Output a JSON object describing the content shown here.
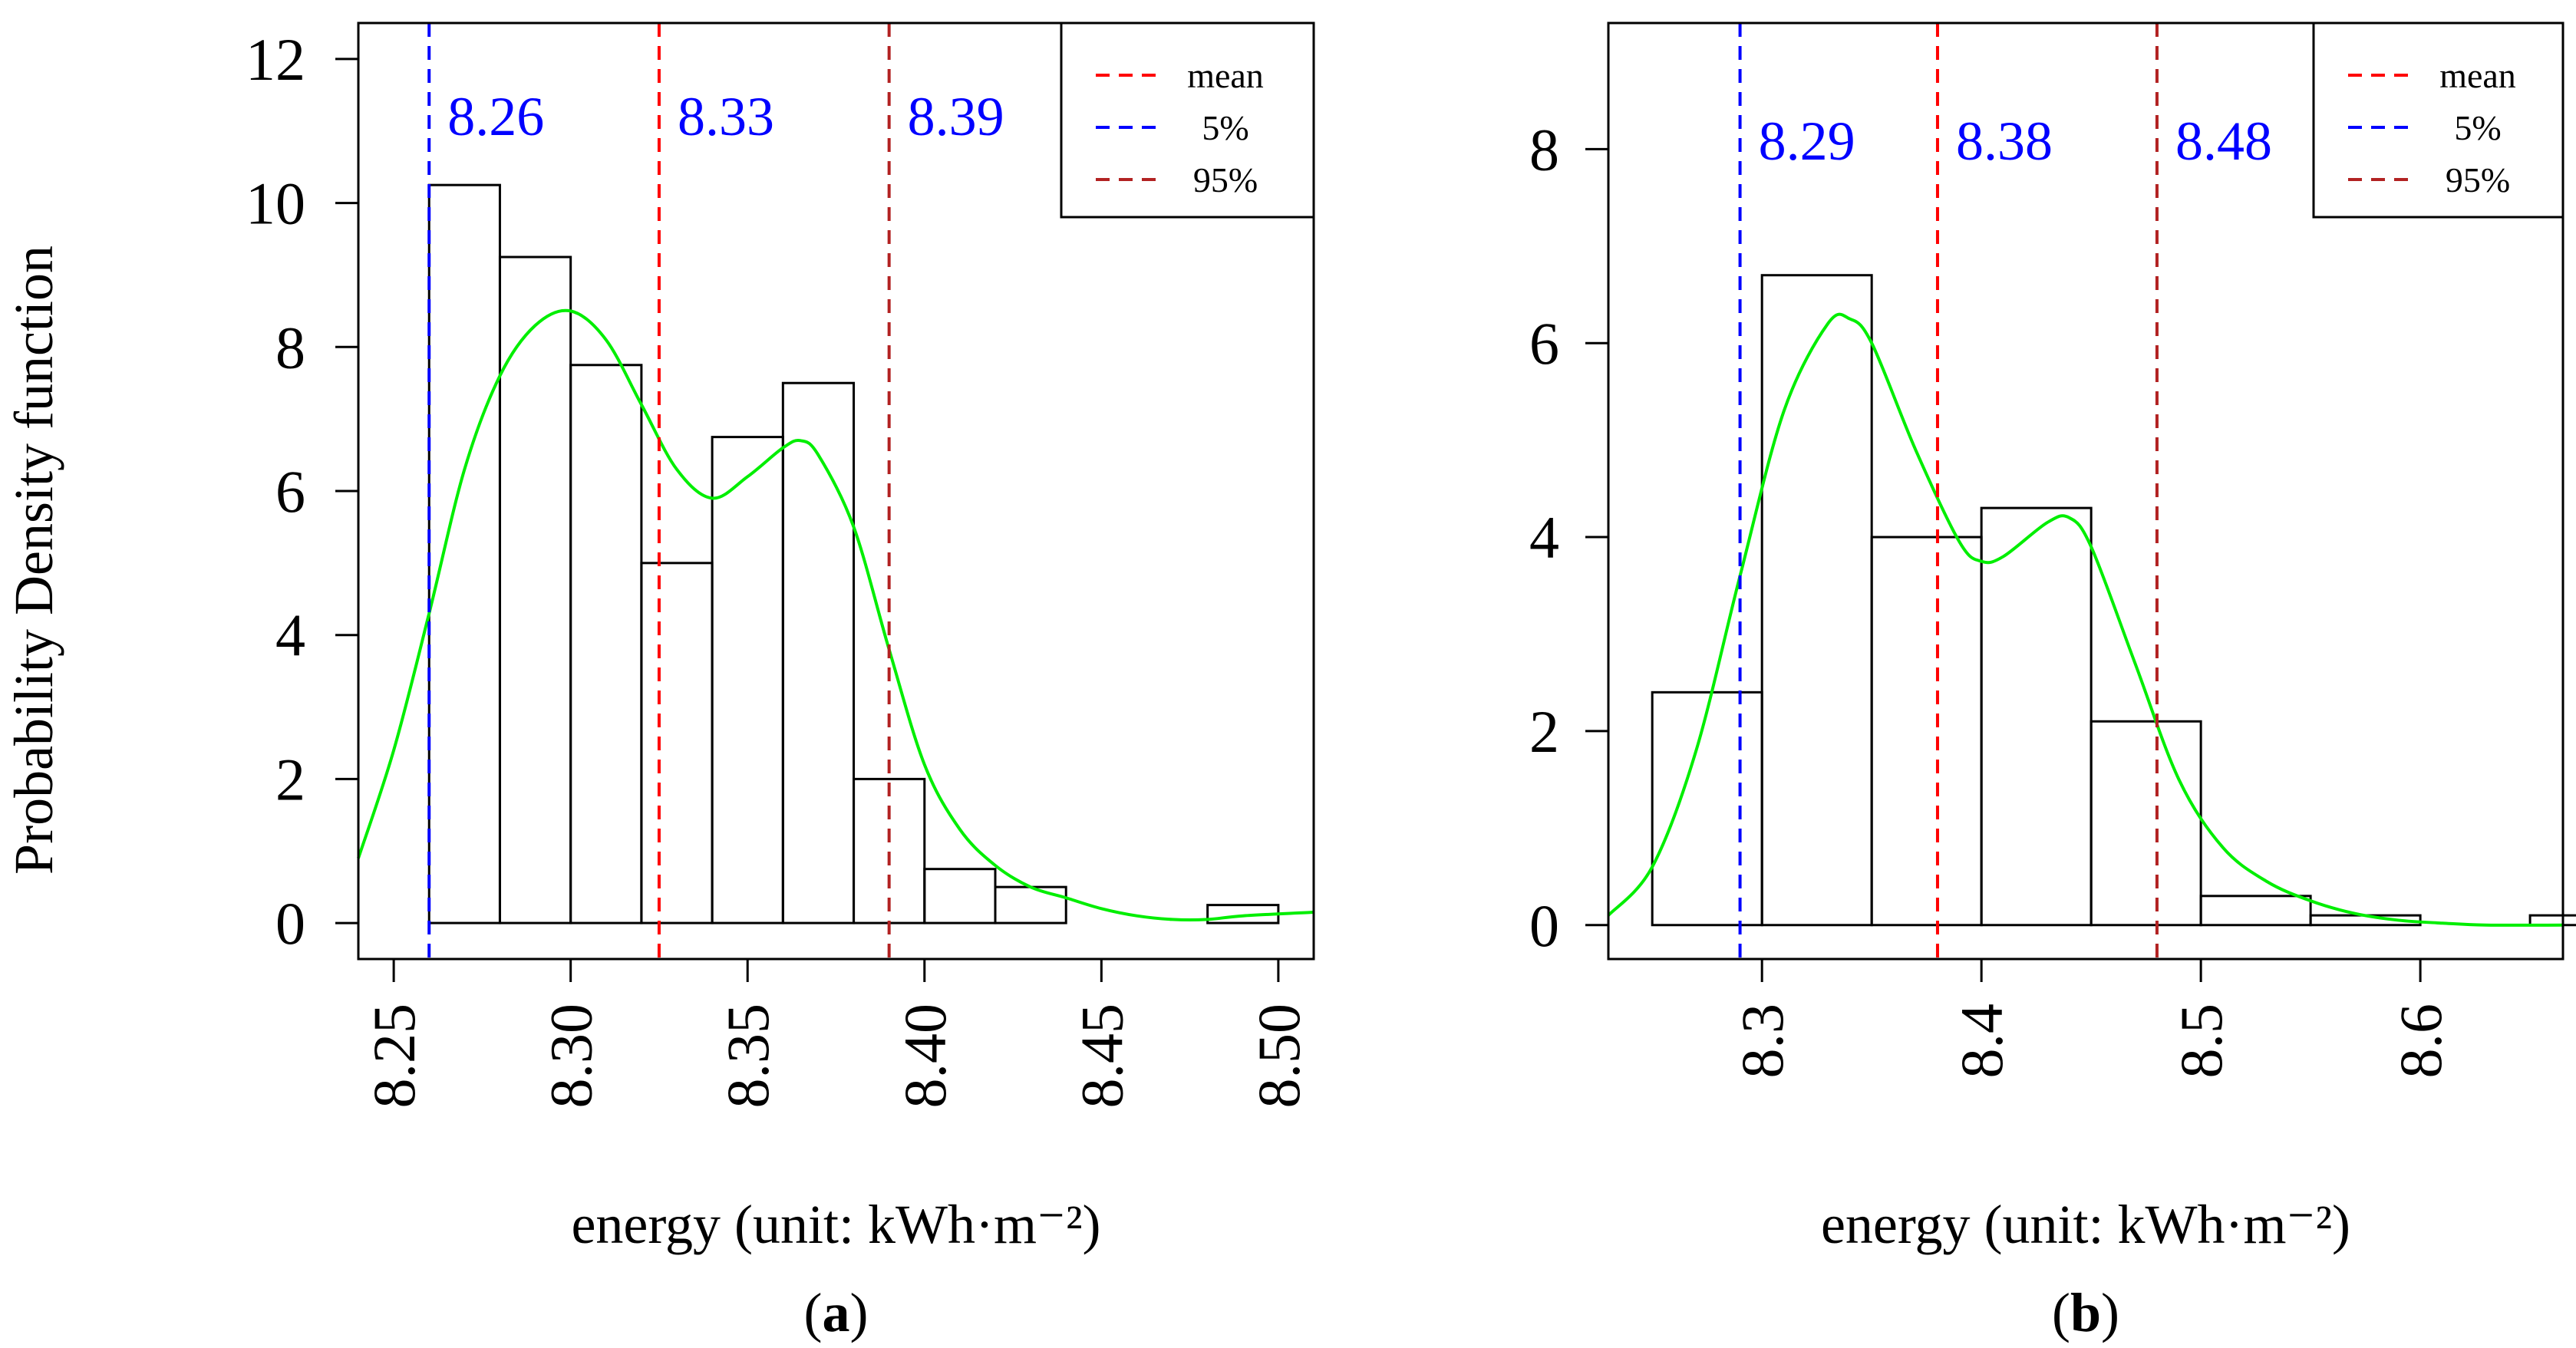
{
  "figure": {
    "ylabel": "Probability Density function"
  },
  "chart_data": [
    {
      "type": "histogram",
      "panel_label": "a",
      "xlabel": "energy (unit: kWh·m⁻²)",
      "ylabel": "Probability Density function",
      "xlim": [
        8.24,
        8.51
      ],
      "ylim": [
        -0.5,
        12.5
      ],
      "xticks": [
        8.25,
        8.3,
        8.35,
        8.4,
        8.45,
        8.5
      ],
      "xtick_labels": [
        "8.25",
        "8.30",
        "8.35",
        "8.40",
        "8.45",
        "8.50"
      ],
      "yticks": [
        0,
        2,
        4,
        6,
        8,
        10,
        12
      ],
      "ytick_labels": [
        "0",
        "2",
        "4",
        "6",
        "8",
        "10",
        "12"
      ],
      "bins": [
        {
          "x0": 8.26,
          "x1": 8.28,
          "density": 10.25
        },
        {
          "x0": 8.28,
          "x1": 8.3,
          "density": 9.25
        },
        {
          "x0": 8.3,
          "x1": 8.32,
          "density": 7.75
        },
        {
          "x0": 8.32,
          "x1": 8.34,
          "density": 5.0
        },
        {
          "x0": 8.34,
          "x1": 8.36,
          "density": 6.75
        },
        {
          "x0": 8.36,
          "x1": 8.38,
          "density": 7.5
        },
        {
          "x0": 8.38,
          "x1": 8.4,
          "density": 2.0
        },
        {
          "x0": 8.4,
          "x1": 8.42,
          "density": 0.75
        },
        {
          "x0": 8.42,
          "x1": 8.44,
          "density": 0.5
        },
        {
          "x0": 8.44,
          "x1": 8.46,
          "density": 0.0
        },
        {
          "x0": 8.46,
          "x1": 8.48,
          "density": 0.0
        },
        {
          "x0": 8.48,
          "x1": 8.5,
          "density": 0.25
        }
      ],
      "density_curve": {
        "color": "#00ee00",
        "x": [
          8.24,
          8.25,
          8.26,
          8.27,
          8.28,
          8.29,
          8.3,
          8.31,
          8.32,
          8.33,
          8.34,
          8.35,
          8.36,
          8.365,
          8.37,
          8.38,
          8.39,
          8.4,
          8.41,
          8.42,
          8.43,
          8.44,
          8.45,
          8.46,
          8.47,
          8.48,
          8.49,
          8.51
        ],
        "y": [
          0.9,
          2.4,
          4.3,
          6.3,
          7.6,
          8.3,
          8.5,
          8.1,
          7.2,
          6.3,
          5.9,
          6.2,
          6.6,
          6.7,
          6.5,
          5.5,
          3.8,
          2.2,
          1.3,
          0.8,
          0.5,
          0.35,
          0.2,
          0.1,
          0.05,
          0.05,
          0.1,
          0.15
        ]
      },
      "vlines": [
        {
          "name": "5%",
          "x": 8.26,
          "color": "#0000ff",
          "label": "8.26"
        },
        {
          "name": "mean",
          "x": 8.325,
          "color": "#ff0000",
          "label": "8.33"
        },
        {
          "name": "95%",
          "x": 8.39,
          "color": "#b22222",
          "label": "8.39"
        }
      ],
      "value_label_color": "#0000ff",
      "legend": {
        "placement": "top-right",
        "entries": [
          {
            "label": "mean",
            "color": "#ff0000"
          },
          {
            "label": "5%",
            "color": "#0000ff"
          },
          {
            "label": "95%",
            "color": "#b22222"
          }
        ]
      }
    },
    {
      "type": "histogram",
      "panel_label": "b",
      "xlabel": "energy (unit: kWh·m⁻²)",
      "ylabel": "",
      "xlim": [
        8.23,
        8.665
      ],
      "ylim": [
        -0.35,
        9.3
      ],
      "xticks": [
        8.3,
        8.4,
        8.5,
        8.6
      ],
      "xtick_labels": [
        "8.3",
        "8.4",
        "8.5",
        "8.6"
      ],
      "yticks": [
        0,
        2,
        4,
        6,
        8
      ],
      "ytick_labels": [
        "0",
        "2",
        "4",
        "6",
        "8"
      ],
      "bins": [
        {
          "x0": 8.25,
          "x1": 8.3,
          "density": 2.4
        },
        {
          "x0": 8.3,
          "x1": 8.35,
          "density": 6.7
        },
        {
          "x0": 8.35,
          "x1": 8.4,
          "density": 4.0
        },
        {
          "x0": 8.4,
          "x1": 8.45,
          "density": 4.3
        },
        {
          "x0": 8.45,
          "x1": 8.5,
          "density": 2.1
        },
        {
          "x0": 8.5,
          "x1": 8.55,
          "density": 0.3
        },
        {
          "x0": 8.55,
          "x1": 8.6,
          "density": 0.1
        },
        {
          "x0": 8.6,
          "x1": 8.65,
          "density": 0.0
        },
        {
          "x0": 8.65,
          "x1": 8.7,
          "density": 0.1
        }
      ],
      "density_curve": {
        "color": "#00ee00",
        "x": [
          8.23,
          8.25,
          8.27,
          8.29,
          8.31,
          8.33,
          8.34,
          8.35,
          8.37,
          8.39,
          8.4,
          8.41,
          8.43,
          8.44,
          8.45,
          8.47,
          8.49,
          8.51,
          8.53,
          8.55,
          8.57,
          8.59,
          8.61,
          8.63,
          8.665
        ],
        "y": [
          0.1,
          0.6,
          1.8,
          3.6,
          5.3,
          6.2,
          6.25,
          6.0,
          4.9,
          3.95,
          3.75,
          3.8,
          4.15,
          4.2,
          3.9,
          2.7,
          1.5,
          0.8,
          0.45,
          0.25,
          0.12,
          0.05,
          0.02,
          0.0,
          0.0
        ]
      },
      "vlines": [
        {
          "name": "5%",
          "x": 8.29,
          "color": "#0000ff",
          "label": "8.29"
        },
        {
          "name": "mean",
          "x": 8.38,
          "color": "#ff0000",
          "label": "8.38"
        },
        {
          "name": "95%",
          "x": 8.48,
          "color": "#b22222",
          "label": "8.48"
        }
      ],
      "value_label_color": "#0000ff",
      "legend": {
        "placement": "top-right",
        "entries": [
          {
            "label": "mean",
            "color": "#ff0000"
          },
          {
            "label": "5%",
            "color": "#0000ff"
          },
          {
            "label": "95%",
            "color": "#b22222"
          }
        ]
      }
    }
  ]
}
